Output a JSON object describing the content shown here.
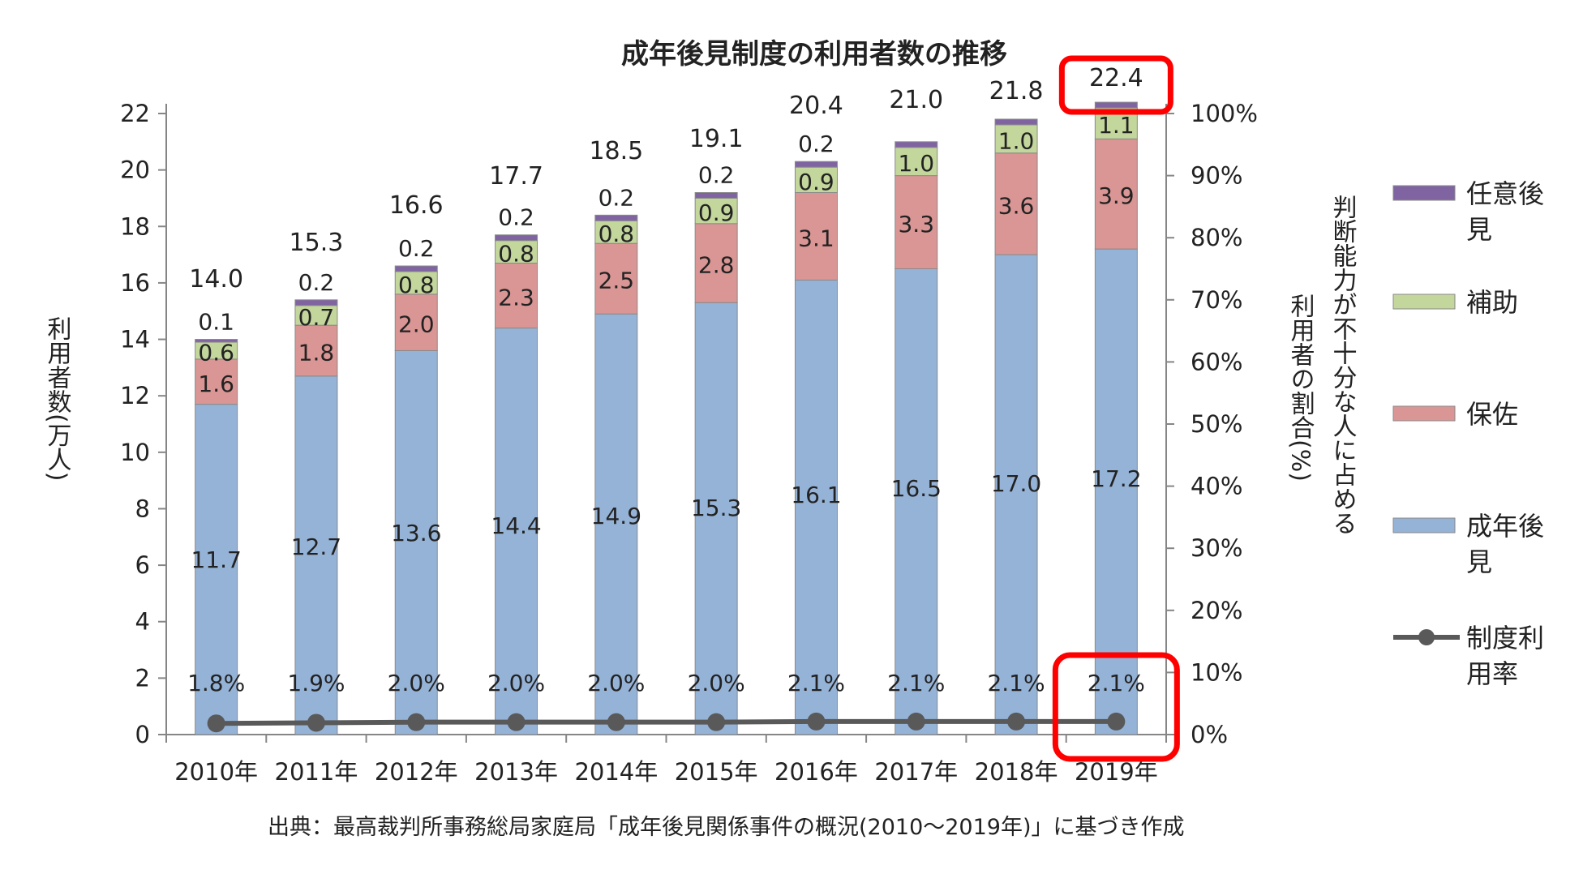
{
  "chart_data": {
    "type": "bar",
    "stacked": true,
    "title": "成年後見制度の利用者数の推移",
    "categories": [
      "2010年",
      "2011年",
      "2012年",
      "2013年",
      "2014年",
      "2015年",
      "2016年",
      "2017年",
      "2018年",
      "2019年"
    ],
    "series": [
      {
        "name": "成年後見",
        "color": "#95b3d7",
        "values": [
          11.7,
          12.7,
          13.6,
          14.4,
          14.9,
          15.3,
          16.1,
          16.5,
          17.0,
          17.2
        ]
      },
      {
        "name": "保佐",
        "color": "#d99694",
        "values": [
          1.6,
          1.8,
          2.0,
          2.3,
          2.5,
          2.8,
          3.1,
          3.3,
          3.6,
          3.9
        ]
      },
      {
        "name": "補助",
        "color": "#c3d69b",
        "values": [
          0.6,
          0.7,
          0.8,
          0.8,
          0.8,
          0.9,
          0.9,
          1.0,
          1.0,
          1.1
        ]
      },
      {
        "name": "任意後見",
        "color": "#8064a2",
        "values": [
          0.1,
          0.2,
          0.2,
          0.2,
          0.2,
          0.2,
          0.2,
          0.2,
          0.2,
          0.2
        ]
      }
    ],
    "segment_labels": [
      [
        "11.7",
        "1.6",
        "0.6",
        "0.1"
      ],
      [
        "12.7",
        "1.8",
        "0.7",
        "0.2"
      ],
      [
        "13.6",
        "2.0",
        "0.8",
        "0.2"
      ],
      [
        "14.4",
        "2.3",
        "0.8",
        "0.2"
      ],
      [
        "14.9",
        "2.5",
        "0.8",
        "0.2"
      ],
      [
        "15.3",
        "2.8",
        "0.9",
        "0.2"
      ],
      [
        "16.1",
        "3.1",
        "0.9",
        "0.2"
      ],
      [
        "16.5",
        "3.3",
        "1.0",
        ""
      ],
      [
        "17.0",
        "3.6",
        "1.0",
        ""
      ],
      [
        "17.2",
        "3.9",
        "1.1",
        ""
      ]
    ],
    "totals": [
      "14.0",
      "15.3",
      "16.6",
      "17.7",
      "18.5",
      "19.1",
      "20.4",
      "21.0",
      "21.8",
      "22.4"
    ],
    "line_series": {
      "name": "制度利用率",
      "color": "#595959",
      "values": [
        1.8,
        1.9,
        2.0,
        2.0,
        2.0,
        2.0,
        2.1,
        2.1,
        2.1,
        2.1
      ],
      "labels": [
        "1.8%",
        "1.9%",
        "2.0%",
        "2.0%",
        "2.0%",
        "2.0%",
        "2.1%",
        "2.1%",
        "2.1%",
        "2.1%"
      ]
    },
    "ylabel": "利用者数(万人)",
    "y2label_right": "判断能力が不十分な人に占める",
    "y2label_left": "利用者の割合(%)",
    "ylim": [
      0,
      22
    ],
    "y_ticks": [
      0,
      2,
      4,
      6,
      8,
      10,
      12,
      14,
      16,
      18,
      20,
      22
    ],
    "y2lim": [
      0,
      100
    ],
    "y2_ticks": [
      "0%",
      "10%",
      "20%",
      "30%",
      "40%",
      "50%",
      "60%",
      "70%",
      "80%",
      "90%",
      "100%"
    ],
    "legend_position": "right",
    "legend": {
      "任意後見": [
        "任意後",
        "見"
      ],
      "補助": [
        "補助"
      ],
      "保佐": [
        "保佐"
      ],
      "成年後見": [
        "成年後",
        "見"
      ],
      "制度利用率": [
        "制度利",
        "用率"
      ]
    },
    "highlights": [
      "2019年 total",
      "2019年 rate"
    ],
    "highlight_color": "#ff0000",
    "source": "出典：最高裁判所事務総局家庭局「成年後見関係事件の概況(2010～2019年)」に基づき作成"
  }
}
